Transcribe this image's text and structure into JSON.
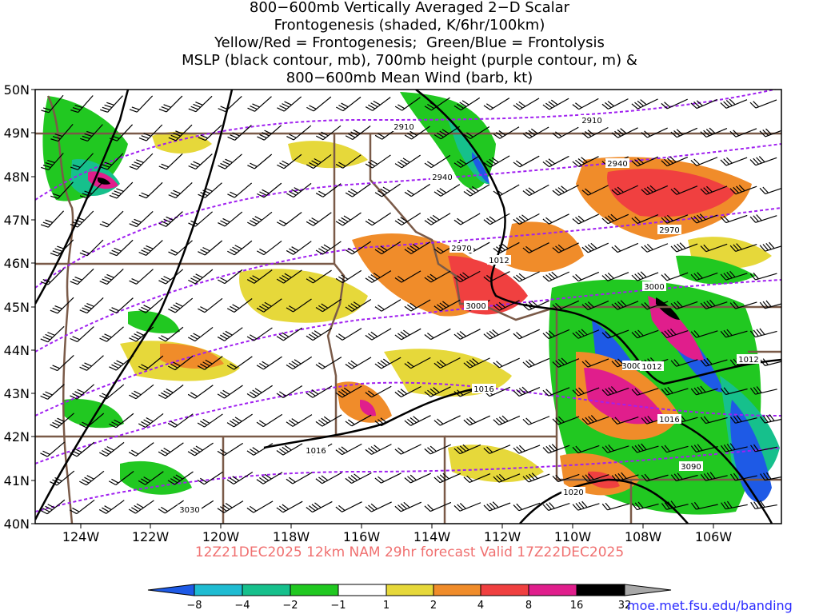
{
  "title": {
    "lines": [
      "800−600mb Vertically Averaged 2−D Scalar",
      "Frontogenesis (shaded, K/6hr/100km)",
      "Yellow/Red = Frontogenesis;  Green/Blue = Frontolysis",
      "MSLP (black contour, mb), 700mb height (purple contour, m) &",
      "800−600mb Mean Wind (barb, kt)"
    ]
  },
  "footer": {
    "run_label": "12Z21DEC2025 12km NAM 29hr forecast Valid 17Z22DEC2025",
    "credit": "moe.met.fsu.edu/banding"
  },
  "map": {
    "lat_labels": [
      "50N",
      "49N",
      "48N",
      "47N",
      "46N",
      "45N",
      "44N",
      "43N",
      "42N",
      "41N",
      "40N"
    ],
    "lon_labels": [
      "124W",
      "122W",
      "120W",
      "118W",
      "116W",
      "114W",
      "112W",
      "110W",
      "108W",
      "106W"
    ],
    "height_contour_labels": [
      "2910",
      "2910",
      "2940",
      "2940",
      "2970",
      "2970",
      "3000",
      "3000",
      "3000",
      "3030",
      "3090"
    ],
    "mslp_contour_labels": [
      "1012",
      "1012",
      "1012",
      "1016",
      "1016",
      "1016",
      "1020"
    ],
    "colors": {
      "mslp": "#000000",
      "height": "#a020f0",
      "border": "#7a5a48",
      "frontogenesis_weak": "#e6d83a",
      "frontogenesis_mod": "#f08c2a",
      "frontogenesis_strong": "#f04040",
      "frontogenesis_vstrong": "#e01e8c",
      "frontolysis_weak": "#21c821",
      "frontolysis_mod": "#16c08c",
      "frontolysis_strong": "#1e5ae6"
    }
  },
  "colorbar": {
    "labels": [
      "−8",
      "−4",
      "−2",
      "−1",
      "1",
      "2",
      "4",
      "8",
      "16",
      "32"
    ],
    "colors": [
      "#1e5ae6",
      "#1fbcd2",
      "#16c08c",
      "#21c821",
      "#ffffff",
      "#e6d83a",
      "#f08c2a",
      "#f04040",
      "#e01e8c",
      "#000000",
      "#a8a8a8"
    ]
  }
}
